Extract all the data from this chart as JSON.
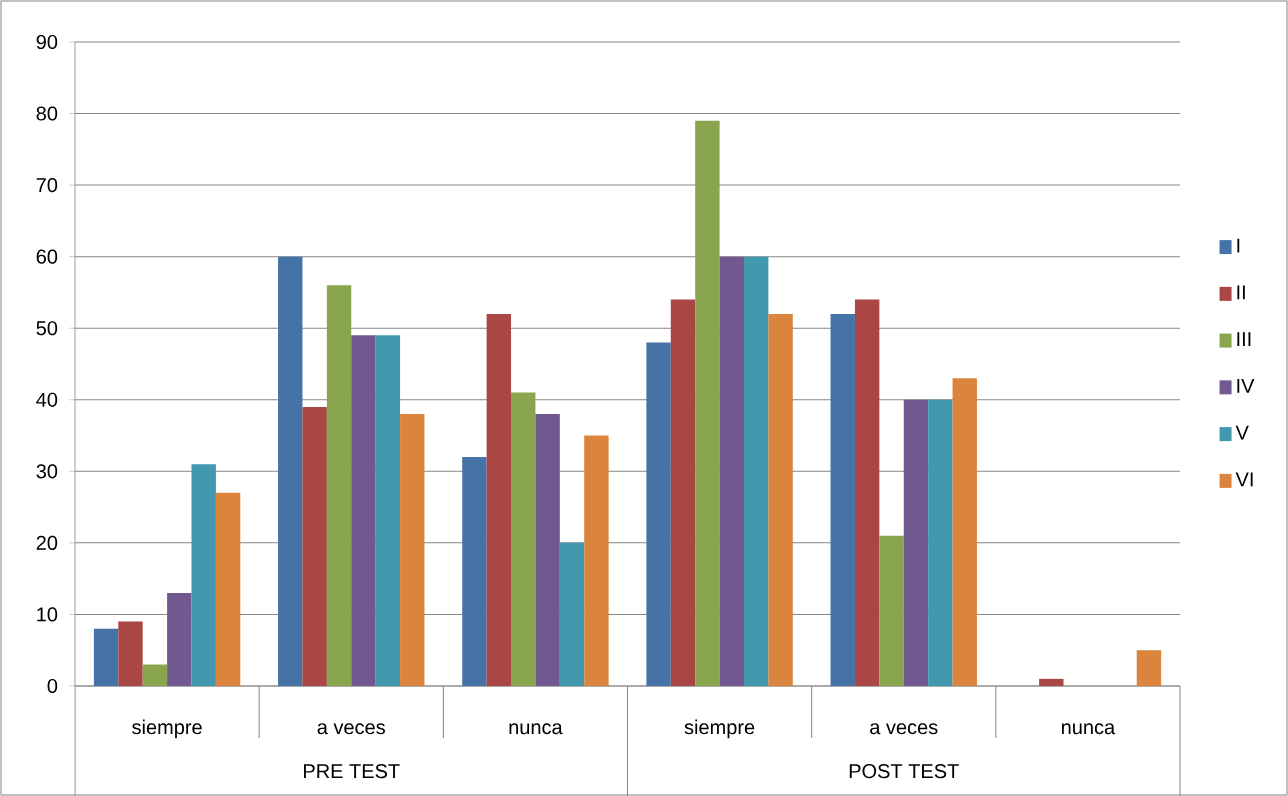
{
  "chart_data": {
    "type": "bar",
    "categories": [
      "siempre",
      "a veces",
      "nunca",
      "siempre",
      "a veces",
      "nunca"
    ],
    "annotations": [
      "PRE TEST",
      "POST TEST"
    ],
    "series": [
      {
        "name": "I",
        "color": "#4572a7",
        "values": [
          8,
          60,
          32,
          48,
          52,
          0
        ]
      },
      {
        "name": "II",
        "color": "#aa4643",
        "values": [
          9,
          39,
          52,
          54,
          54,
          1
        ]
      },
      {
        "name": "III",
        "color": "#89a54e",
        "values": [
          3,
          56,
          41,
          79,
          21,
          0
        ]
      },
      {
        "name": "IV",
        "color": "#71588f",
        "values": [
          13,
          49,
          38,
          60,
          40,
          0
        ]
      },
      {
        "name": "V",
        "color": "#4198af",
        "values": [
          31,
          49,
          20,
          60,
          40,
          0
        ]
      },
      {
        "name": "VI",
        "color": "#db843d",
        "values": [
          27,
          38,
          35,
          52,
          43,
          5
        ]
      }
    ],
    "ylim": [
      0,
      90
    ],
    "yticks": [
      0,
      10,
      20,
      30,
      40,
      50,
      60,
      70,
      80,
      90
    ],
    "grid": "y",
    "legend": "right"
  }
}
